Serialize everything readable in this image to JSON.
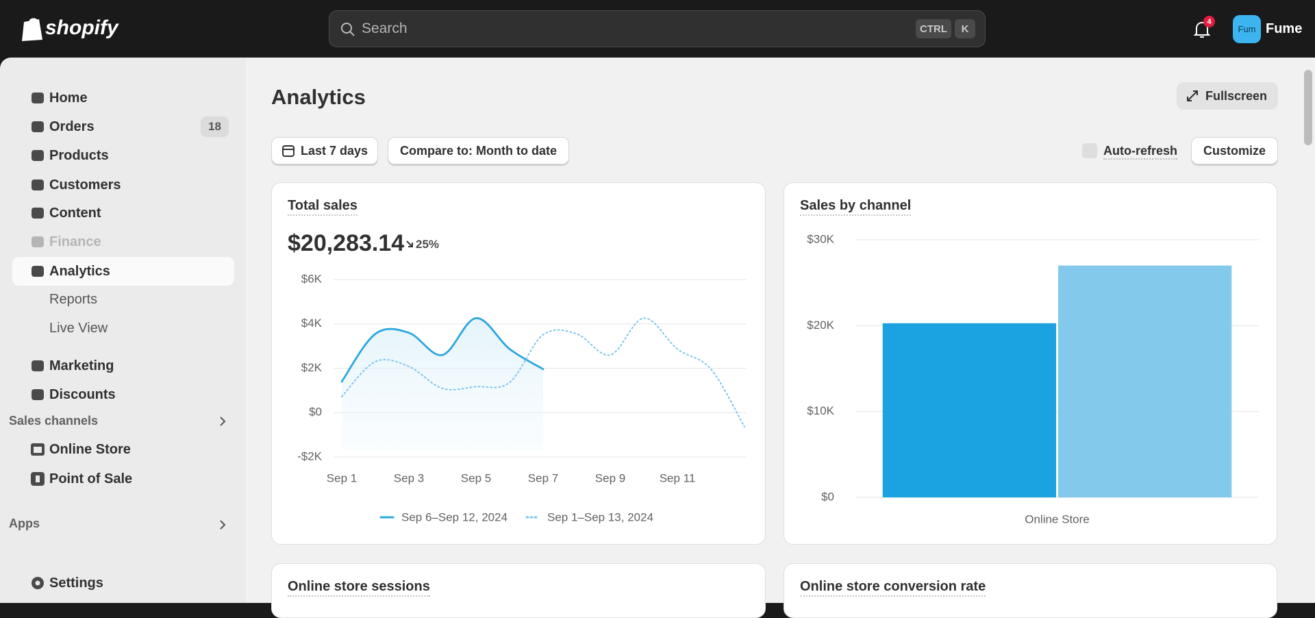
{
  "topbar": {
    "logo": "shopify",
    "search": "Search",
    "shortcut": [
      "CTRL",
      "K"
    ],
    "notifications": "4",
    "avatar": "Fum",
    "store": "Fume"
  },
  "sidebar": {
    "items": [
      {
        "label": "Home"
      },
      {
        "label": "Orders",
        "badge": "18"
      },
      {
        "label": "Products"
      },
      {
        "label": "Customers"
      },
      {
        "label": "Content"
      },
      {
        "label": "Finance",
        "disabled": true
      },
      {
        "label": "Analytics",
        "active": true
      },
      {
        "label": "Reports",
        "sub": true
      },
      {
        "label": "Live View",
        "sub": true
      },
      {
        "label": "Marketing"
      },
      {
        "label": "Discounts"
      }
    ],
    "sales_channels": {
      "title": "Sales channels",
      "items": [
        "Online Store",
        "Point of Sale"
      ]
    },
    "apps": "Apps",
    "settings": "Settings"
  },
  "main": {
    "title": "Analytics",
    "fullscreen": "Fullscreen",
    "date_range": "Last 7 days",
    "compare": "Compare to: Month to date",
    "auto_refresh": "Auto-refresh",
    "customize": "Customize",
    "more_cards": [
      "Online store sessions",
      "Online store conversion rate"
    ]
  },
  "chart_data": [
    {
      "type": "line",
      "title": "Total sales",
      "total": "$20,283.14",
      "change": "25%",
      "categories": [
        "Sep 1",
        null,
        "Sep 3",
        null,
        "Sep 5",
        null,
        "Sep 7",
        null,
        "Sep 9",
        null,
        "Sep 11",
        null,
        null
      ],
      "series": [
        {
          "name": "Sep 6–Sep 12, 2024",
          "color": "#2ba7e0",
          "style": "solid",
          "fill": true,
          "values": [
            1400,
            3550,
            3600,
            2600,
            4260,
            2870,
            1960,
            null,
            null,
            null,
            null,
            null,
            null
          ]
        },
        {
          "name": "Sep 1–Sep 13, 2024",
          "color": "#7cc6ea",
          "style": "dotted",
          "fill": false,
          "values": [
            720,
            2300,
            2080,
            1090,
            1170,
            1360,
            3510,
            3550,
            2600,
            4260,
            2870,
            1960,
            -640
          ]
        }
      ],
      "ylim": [
        -2000,
        6000
      ],
      "yticks": [
        {
          "value": -2000,
          "label": "-$2K"
        },
        {
          "value": 0,
          "label": "$0"
        },
        {
          "value": 2000,
          "label": "$2K"
        },
        {
          "value": 4000,
          "label": "$4K"
        },
        {
          "value": 6000,
          "label": "$6K"
        }
      ],
      "grid": true
    },
    {
      "type": "bar",
      "title": "Sales by channel",
      "categories": [
        "Online Store"
      ],
      "series": [
        {
          "color": "#1ba3e1",
          "values": [
            20283.14
          ]
        },
        {
          "color": "#82c9eb",
          "values": [
            27000
          ]
        }
      ],
      "ylim": [
        0,
        30000
      ],
      "yticks": [
        {
          "value": 0,
          "label": "$0"
        },
        {
          "value": 10000,
          "label": "$10K"
        },
        {
          "value": 20000,
          "label": "$20K"
        },
        {
          "value": 30000,
          "label": "$30K"
        }
      ],
      "grid": true
    }
  ]
}
